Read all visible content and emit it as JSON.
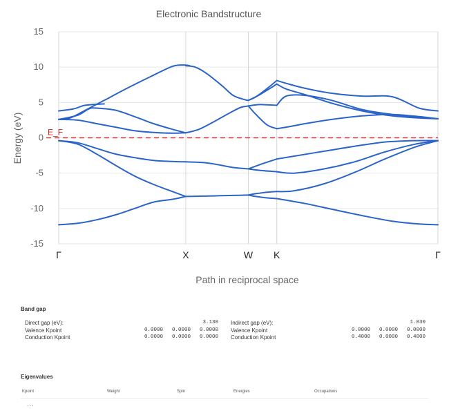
{
  "chart_data": {
    "type": "line",
    "title": "Electronic Bandstructure",
    "xlabel": "Path in reciprocal space",
    "ylabel": "Energy (eV)",
    "xlim": [
      0,
      1
    ],
    "ylim": [
      -15,
      15
    ],
    "y_ticks": [
      15,
      10,
      5,
      0,
      -5,
      -10,
      -15
    ],
    "grid": true,
    "symmetry_points": [
      {
        "label": "Γ",
        "x": 0.0
      },
      {
        "label": "X",
        "x": 0.335
      },
      {
        "label": "W",
        "x": 0.5
      },
      {
        "label": "K",
        "x": 0.575
      },
      {
        "label": "Γ",
        "x": 1.0
      }
    ],
    "fermi_level": {
      "label": "E_F",
      "y": 0,
      "color": "#e03030"
    },
    "series_color": "#2a64c8",
    "series": [
      {
        "x": [
          0,
          0.05,
          0.1,
          0.15,
          0.2,
          0.25,
          0.3,
          0.335
        ],
        "y": [
          -12.3,
          -12.1,
          -11.6,
          -10.9,
          -10.0,
          -9.1,
          -8.7,
          -8.3
        ]
      },
      {
        "x": [
          0,
          0.05,
          0.1,
          0.15,
          0.2,
          0.25,
          0.3,
          0.335
        ],
        "y": [
          -0.4,
          -0.9,
          -2.3,
          -3.9,
          -5.4,
          -6.6,
          -7.6,
          -8.3
        ]
      },
      {
        "x": [
          0,
          0.05,
          0.1,
          0.15,
          0.2,
          0.25,
          0.3,
          0.335
        ],
        "y": [
          -0.4,
          -0.7,
          -1.5,
          -2.3,
          -2.8,
          -3.2,
          -3.35,
          -3.4
        ]
      },
      {
        "x": [
          0,
          0.05,
          0.1,
          0.15,
          0.2,
          0.25,
          0.3,
          0.335
        ],
        "y": [
          2.6,
          2.5,
          2.0,
          1.5,
          1.0,
          0.75,
          0.65,
          0.7
        ]
      },
      {
        "x": [
          0,
          0.05,
          0.08,
          0.1,
          0.15,
          0.2,
          0.25,
          0.3,
          0.335
        ],
        "y": [
          2.6,
          3.2,
          4.1,
          4.2,
          3.9,
          3.0,
          2.0,
          1.2,
          0.7
        ]
      },
      {
        "x": [
          0,
          0.03,
          0.07,
          0.12,
          0.18,
          0.24,
          0.3,
          0.33,
          0.345
        ],
        "y": [
          2.6,
          2.8,
          3.9,
          5.3,
          7.0,
          8.6,
          10.1,
          10.3,
          10.2
        ]
      },
      {
        "x": [
          0,
          0.04,
          0.07,
          0.12
        ],
        "y": [
          3.8,
          4.1,
          4.6,
          4.8
        ]
      },
      {
        "x": [
          0.335,
          0.38,
          0.42,
          0.46,
          0.5
        ],
        "y": [
          -8.3,
          -8.25,
          -8.2,
          -8.15,
          -8.1
        ]
      },
      {
        "x": [
          0.335,
          0.38,
          0.42,
          0.46,
          0.5
        ],
        "y": [
          -3.4,
          -3.5,
          -3.8,
          -4.2,
          -4.4
        ]
      },
      {
        "x": [
          0.335,
          0.37,
          0.41,
          0.45,
          0.48,
          0.5
        ],
        "y": [
          0.7,
          1.2,
          2.3,
          3.5,
          4.3,
          4.5
        ]
      },
      {
        "x": [
          0.335,
          0.36,
          0.39,
          0.43,
          0.46,
          0.49,
          0.5
        ],
        "y": [
          10.2,
          10.0,
          9.1,
          7.4,
          6.0,
          5.4,
          5.3
        ]
      },
      {
        "x": [
          0.5,
          0.52,
          0.55,
          0.575
        ],
        "y": [
          -8.1,
          -8.3,
          -8.5,
          -8.6
        ]
      },
      {
        "x": [
          0.5,
          0.52,
          0.55,
          0.575
        ],
        "y": [
          -8.1,
          -7.9,
          -7.7,
          -7.6
        ]
      },
      {
        "x": [
          0.5,
          0.53,
          0.575
        ],
        "y": [
          -4.4,
          -4.6,
          -4.8
        ]
      },
      {
        "x": [
          0.5,
          0.53,
          0.575
        ],
        "y": [
          -4.4,
          -3.8,
          -3.0
        ]
      },
      {
        "x": [
          0.5,
          0.53,
          0.575
        ],
        "y": [
          4.5,
          4.7,
          4.6
        ]
      },
      {
        "x": [
          0.5,
          0.52,
          0.55,
          0.575
        ],
        "y": [
          4.5,
          3.3,
          1.8,
          1.3
        ]
      },
      {
        "x": [
          0.5,
          0.52,
          0.55,
          0.575
        ],
        "y": [
          5.3,
          5.8,
          7.0,
          8.1
        ]
      },
      {
        "x": [
          0.5,
          0.53,
          0.575
        ],
        "y": [
          5.3,
          6.1,
          7.6
        ]
      },
      {
        "x": [
          0.575,
          0.65,
          0.72,
          0.8,
          0.88,
          0.95,
          1.0
        ],
        "y": [
          -8.6,
          -9.3,
          -10.1,
          -11.0,
          -11.8,
          -12.2,
          -12.3
        ]
      },
      {
        "x": [
          0.575,
          0.62,
          0.7,
          0.78,
          0.86,
          0.94,
          1.0
        ],
        "y": [
          -7.6,
          -7.5,
          -6.5,
          -4.9,
          -3.0,
          -1.3,
          -0.4
        ]
      },
      {
        "x": [
          0.575,
          0.62,
          0.7,
          0.78,
          0.86,
          0.94,
          1.0
        ],
        "y": [
          -4.8,
          -5.0,
          -4.4,
          -3.4,
          -2.0,
          -0.9,
          -0.4
        ]
      },
      {
        "x": [
          0.575,
          0.62,
          0.7,
          0.78,
          0.86,
          0.94,
          1.0
        ],
        "y": [
          -3.0,
          -2.6,
          -1.9,
          -1.2,
          -0.6,
          -0.4,
          -0.4
        ]
      },
      {
        "x": [
          0.575,
          0.6,
          0.65,
          0.72,
          0.8,
          0.88,
          0.95,
          1.0
        ],
        "y": [
          1.3,
          1.5,
          2.0,
          2.6,
          3.1,
          3.3,
          3.0,
          2.7
        ]
      },
      {
        "x": [
          0.575,
          0.6,
          0.65,
          0.72,
          0.8,
          0.88,
          0.95,
          1.0
        ],
        "y": [
          4.6,
          5.9,
          6.0,
          5.3,
          4.0,
          3.3,
          2.9,
          2.7
        ]
      },
      {
        "x": [
          0.575,
          0.6,
          0.65,
          0.72,
          0.8,
          0.88,
          0.95,
          1.0
        ],
        "y": [
          7.6,
          6.9,
          6.1,
          4.9,
          3.8,
          3.1,
          2.8,
          2.7
        ]
      },
      {
        "x": [
          0.575,
          0.6,
          0.65,
          0.72,
          0.8,
          0.88,
          0.95,
          1.0
        ],
        "y": [
          8.1,
          7.7,
          7.0,
          6.3,
          5.9,
          5.8,
          4.2,
          3.8
        ]
      }
    ]
  },
  "band_gap": {
    "title": "Band gap",
    "direct": {
      "gap_label": "Direct gap (eV):",
      "gap_value": "3.130",
      "valence_label": "Valence Kpoint",
      "valence": [
        "0.0000",
        "0.0000",
        "0.0000"
      ],
      "conduction_label": "Conduction Kpoint",
      "conduction": [
        "0.0000",
        "0.0000",
        "0.0000"
      ]
    },
    "indirect": {
      "gap_label": "Indirect gap (eV):",
      "gap_value": "1.030",
      "valence_label": "Valence Kpoint",
      "valence": [
        "0.0000",
        "0.0000",
        "0.0000"
      ],
      "conduction_label": "Conduction Kpoint",
      "conduction": [
        "0.4000",
        "0.0000",
        "0.4000"
      ]
    }
  },
  "eigenvalues": {
    "title": "Eigenvalues",
    "columns": [
      "Kpoint",
      "Weight",
      "Spin",
      "Energies",
      "Occupations"
    ],
    "more": "..."
  }
}
